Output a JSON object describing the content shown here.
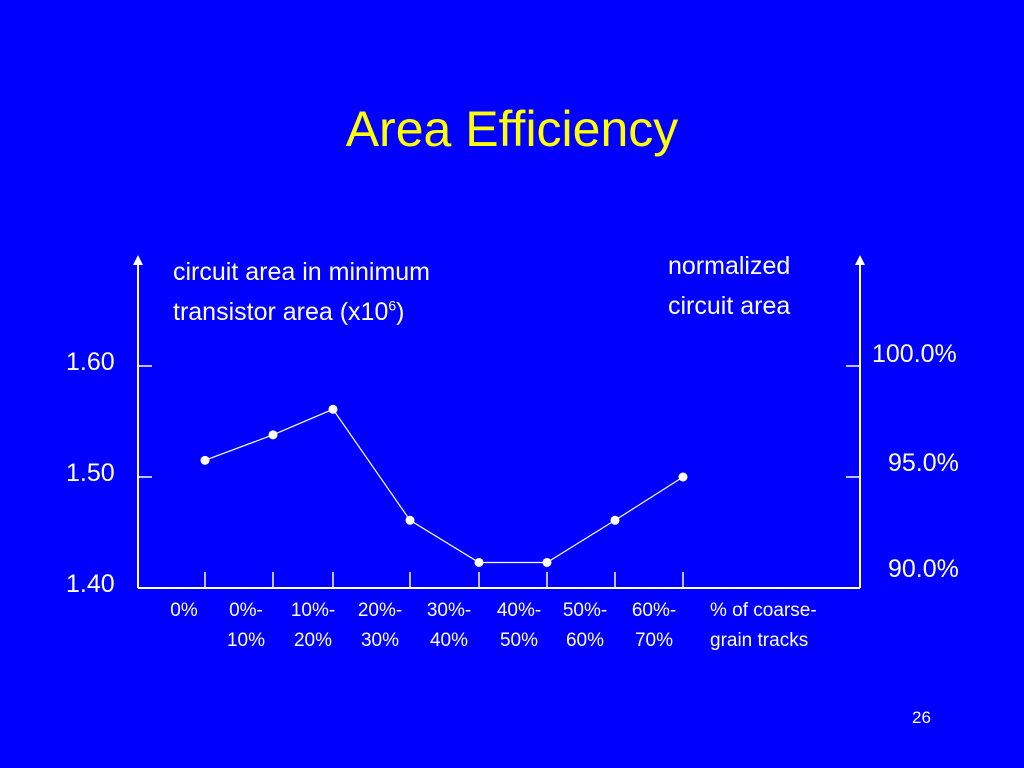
{
  "slide": {
    "title": "Area Efficiency",
    "page_number": "26"
  },
  "colors": {
    "background": "#0000FF",
    "title": "#FFFF00",
    "text": "#FFFFFF",
    "series": "#FFFFFF"
  },
  "chart_data": {
    "type": "line",
    "title": "Area Efficiency",
    "ylabel_left": {
      "line1": "circuit area in minimum",
      "line2_prefix": "transistor area (x10",
      "line2_sup": "6",
      "line2_suffix": ")"
    },
    "ylabel_right": {
      "line1": "normalized",
      "line2": "circuit area"
    },
    "xlabel": {
      "line1": "% of coarse-",
      "line2": "grain tracks"
    },
    "categories": [
      {
        "line1": "0%",
        "line2": ""
      },
      {
        "line1": "0%-",
        "line2": "10%"
      },
      {
        "line1": "10%-",
        "line2": "20%"
      },
      {
        "line1": "20%-",
        "line2": "30%"
      },
      {
        "line1": "30%-",
        "line2": "40%"
      },
      {
        "line1": "40%-",
        "line2": "50%"
      },
      {
        "line1": "50%-",
        "line2": "60%"
      },
      {
        "line1": "60%-",
        "line2": "70%"
      }
    ],
    "y_ticks_left": [
      "1.40",
      "1.50",
      "1.60"
    ],
    "y_ticks_right": [
      "90.0%",
      "95.0%",
      "100.0%"
    ],
    "ylim_left": [
      1.4,
      1.6
    ],
    "ylim_right": [
      90.0,
      100.0
    ],
    "series": [
      {
        "values": [
          1.515,
          1.538,
          1.561,
          1.461,
          1.423,
          1.423,
          1.461,
          1.5
        ]
      }
    ],
    "grid": false,
    "legend": "none"
  }
}
